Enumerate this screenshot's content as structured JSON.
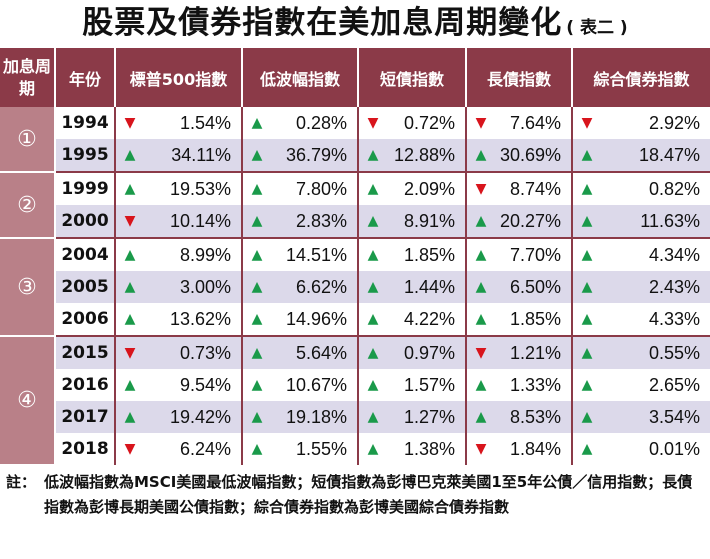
{
  "title": "股票及債券指數在美加息周期變化",
  "subtitle": "( 表二 )",
  "headers": {
    "phase": "加息周期",
    "year": "年份",
    "columns": [
      "標普500指數",
      "低波幅指數",
      "短債指數",
      "長債指數",
      "綜合債券指數"
    ]
  },
  "groups": [
    {
      "label": "①",
      "rows": [
        {
          "year": "1994",
          "cells": [
            {
              "dir": "down",
              "value": "1.54%"
            },
            {
              "dir": "up",
              "value": "0.28%"
            },
            {
              "dir": "down",
              "value": "0.72%"
            },
            {
              "dir": "down",
              "value": "7.64%"
            },
            {
              "dir": "down",
              "value": "2.92%"
            }
          ]
        },
        {
          "year": "1995",
          "cells": [
            {
              "dir": "up",
              "value": "34.11%"
            },
            {
              "dir": "up",
              "value": "36.79%"
            },
            {
              "dir": "up",
              "value": "12.88%"
            },
            {
              "dir": "up",
              "value": "30.69%"
            },
            {
              "dir": "up",
              "value": "18.47%"
            }
          ]
        }
      ]
    },
    {
      "label": "②",
      "rows": [
        {
          "year": "1999",
          "cells": [
            {
              "dir": "up",
              "value": "19.53%"
            },
            {
              "dir": "up",
              "value": "7.80%"
            },
            {
              "dir": "up",
              "value": "2.09%"
            },
            {
              "dir": "down",
              "value": "8.74%"
            },
            {
              "dir": "up",
              "value": "0.82%"
            }
          ]
        },
        {
          "year": "2000",
          "cells": [
            {
              "dir": "down",
              "value": "10.14%"
            },
            {
              "dir": "up",
              "value": "2.83%"
            },
            {
              "dir": "up",
              "value": "8.91%"
            },
            {
              "dir": "up",
              "value": "20.27%"
            },
            {
              "dir": "up",
              "value": "11.63%"
            }
          ]
        }
      ]
    },
    {
      "label": "③",
      "rows": [
        {
          "year": "2004",
          "cells": [
            {
              "dir": "up",
              "value": "8.99%"
            },
            {
              "dir": "up",
              "value": "14.51%"
            },
            {
              "dir": "up",
              "value": "1.85%"
            },
            {
              "dir": "up",
              "value": "7.70%"
            },
            {
              "dir": "up",
              "value": "4.34%"
            }
          ]
        },
        {
          "year": "2005",
          "cells": [
            {
              "dir": "up",
              "value": "3.00%"
            },
            {
              "dir": "up",
              "value": "6.62%"
            },
            {
              "dir": "up",
              "value": "1.44%"
            },
            {
              "dir": "up",
              "value": "6.50%"
            },
            {
              "dir": "up",
              "value": "2.43%"
            }
          ]
        },
        {
          "year": "2006",
          "cells": [
            {
              "dir": "up",
              "value": "13.62%"
            },
            {
              "dir": "up",
              "value": "14.96%"
            },
            {
              "dir": "up",
              "value": "4.22%"
            },
            {
              "dir": "up",
              "value": "1.85%"
            },
            {
              "dir": "up",
              "value": "4.33%"
            }
          ]
        }
      ]
    },
    {
      "label": "④",
      "rows": [
        {
          "year": "2015",
          "cells": [
            {
              "dir": "down",
              "value": "0.73%"
            },
            {
              "dir": "up",
              "value": "5.64%"
            },
            {
              "dir": "up",
              "value": "0.97%"
            },
            {
              "dir": "down",
              "value": "1.21%"
            },
            {
              "dir": "up",
              "value": "0.55%"
            }
          ]
        },
        {
          "year": "2016",
          "cells": [
            {
              "dir": "up",
              "value": "9.54%"
            },
            {
              "dir": "up",
              "value": "10.67%"
            },
            {
              "dir": "up",
              "value": "1.57%"
            },
            {
              "dir": "up",
              "value": "1.33%"
            },
            {
              "dir": "up",
              "value": "2.65%"
            }
          ]
        },
        {
          "year": "2017",
          "cells": [
            {
              "dir": "up",
              "value": "19.42%"
            },
            {
              "dir": "up",
              "value": "19.18%"
            },
            {
              "dir": "up",
              "value": "1.27%"
            },
            {
              "dir": "up",
              "value": "8.53%"
            },
            {
              "dir": "up",
              "value": "3.54%"
            }
          ]
        },
        {
          "year": "2018",
          "cells": [
            {
              "dir": "down",
              "value": "6.24%"
            },
            {
              "dir": "up",
              "value": "1.55%"
            },
            {
              "dir": "up",
              "value": "1.38%"
            },
            {
              "dir": "down",
              "value": "1.84%"
            },
            {
              "dir": "up",
              "value": "0.01%"
            }
          ]
        }
      ]
    }
  ],
  "note": {
    "label": "註：",
    "text": "低波幅指數為MSCI美國最低波幅指數；短債指數為彭博巴克萊美國1至5年公債／信用指數；長債指數為彭博長期美國公債指數；綜合債券指數為彭博美國綜合債券指數"
  },
  "colors": {
    "header_bg": "#8b3a48",
    "phase_bg": "#b98088",
    "shade_row": "#dcd9ea",
    "up_arrow": "#1a9a4a",
    "down_arrow": "#d8141c"
  },
  "icons": {
    "up": "triangle-up-icon",
    "down": "triangle-down-icon"
  }
}
